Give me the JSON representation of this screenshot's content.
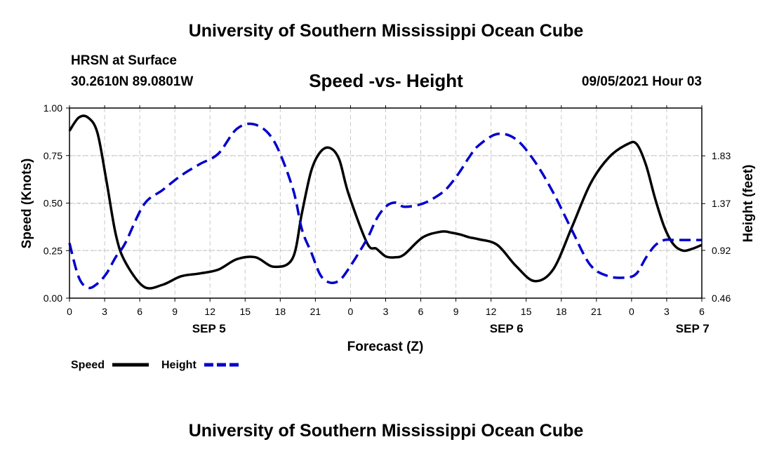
{
  "header": {
    "title_top": "University of Southern Mississippi Ocean Cube",
    "title_bottom": "University of Southern Mississippi Ocean Cube",
    "station": "HRSN at Surface",
    "location": "30.2610N  89.0801W",
    "datetime": "09/05/2021 Hour 03"
  },
  "colors": {
    "speed": "#000000",
    "height": "#0000cc",
    "grid": "#c8c8c8"
  },
  "chart_data": {
    "type": "line",
    "title": "Speed -vs- Height",
    "xlabel": "Forecast (Z)",
    "ylabel": "Speed (Knots)",
    "y2label": "Height (feet)",
    "x_range": [
      0,
      17
    ],
    "ylim": [
      0,
      1
    ],
    "y2lim": [
      0.46,
      2.29
    ],
    "x_ticks": [
      "0",
      "3",
      "6",
      "9",
      "12",
      "15",
      "18",
      "21",
      "0",
      "3",
      "6",
      "9",
      "12",
      "15",
      "18",
      "21",
      "0",
      "3",
      "6"
    ],
    "y_ticks": [
      "0.00",
      "0.25",
      "0.50",
      "0.75",
      "1.00"
    ],
    "y2_ticks": [
      {
        "value": 0.46,
        "label": "0.46"
      },
      {
        "value": 0.92,
        "label": "0.92"
      },
      {
        "value": 1.37,
        "label": "1.37"
      },
      {
        "value": 1.83,
        "label": "1.83"
      }
    ],
    "day_labels": [
      {
        "x": 3.75,
        "label": "SEP 5"
      },
      {
        "x": 11.75,
        "label": "SEP 6"
      },
      {
        "x": 16.75,
        "label": "SEP 7"
      }
    ],
    "series": [
      {
        "name": "Speed",
        "axis": "left",
        "style": "solid",
        "x": [
          0,
          0.25,
          0.5,
          0.75,
          1.0,
          1.25,
          1.5,
          2.0,
          2.5,
          3.0,
          3.5,
          4.0,
          4.5,
          5.0,
          5.5,
          6.0,
          6.25,
          6.5,
          6.75,
          7.0,
          7.25,
          7.5,
          8.0,
          8.25,
          8.5,
          8.75,
          9.0,
          9.5,
          10.0,
          10.25,
          10.5,
          10.75,
          11.0,
          11.5,
          12.0,
          12.5,
          13.0,
          13.5,
          14.0,
          14.5,
          15.0,
          15.25,
          15.5,
          15.75,
          16.0,
          16.25,
          16.5,
          16.75,
          17.0
        ],
        "values": [
          0.88,
          0.95,
          0.95,
          0.87,
          0.61,
          0.33,
          0.19,
          0.06,
          0.07,
          0.115,
          0.13,
          0.15,
          0.205,
          0.215,
          0.165,
          0.21,
          0.45,
          0.67,
          0.77,
          0.79,
          0.73,
          0.55,
          0.29,
          0.26,
          0.22,
          0.215,
          0.23,
          0.32,
          0.35,
          0.345,
          0.335,
          0.32,
          0.31,
          0.28,
          0.17,
          0.09,
          0.15,
          0.37,
          0.6,
          0.74,
          0.81,
          0.81,
          0.7,
          0.52,
          0.37,
          0.28,
          0.25,
          0.26,
          0.28
        ],
        "note": "visible portion ends at x=6 of third day window (plot right edge)"
      },
      {
        "name": "Height",
        "axis": "right",
        "style": "dashed",
        "x": [
          0,
          0.25,
          0.5,
          0.75,
          1.0,
          1.25,
          1.5,
          2.0,
          2.5,
          3.0,
          3.5,
          4.0,
          4.5,
          5.0,
          5.5,
          6.0,
          6.25,
          6.5,
          6.75,
          7.0,
          7.25,
          7.5,
          8.0,
          8.25,
          8.5,
          8.75,
          9.0,
          9.5,
          10.0,
          10.25,
          10.5,
          10.75,
          11.0,
          11.5,
          12.0,
          12.5,
          13.0,
          13.5,
          14.0,
          14.5,
          15.0,
          15.25,
          15.5,
          15.75,
          16.0,
          16.25,
          16.5,
          16.75,
          17.0
        ],
        "values": [
          0.99,
          0.66,
          0.56,
          0.6,
          0.7,
          0.86,
          0.99,
          1.36,
          1.5,
          1.64,
          1.75,
          1.85,
          2.09,
          2.13,
          1.97,
          1.52,
          1.12,
          0.9,
          0.68,
          0.61,
          0.63,
          0.74,
          1.03,
          1.22,
          1.34,
          1.38,
          1.34,
          1.37,
          1.47,
          1.56,
          1.68,
          1.82,
          1.93,
          2.04,
          1.99,
          1.78,
          1.48,
          1.12,
          0.78,
          0.67,
          0.66,
          0.7,
          0.85,
          0.97,
          1.02,
          1.02,
          1.02,
          1.02,
          1.02
        ],
        "note": "visible portion ends at right edge"
      }
    ],
    "legend": [
      {
        "label": "Speed",
        "style": "solid"
      },
      {
        "label": "Height",
        "style": "dashed"
      }
    ],
    "grid": true
  }
}
